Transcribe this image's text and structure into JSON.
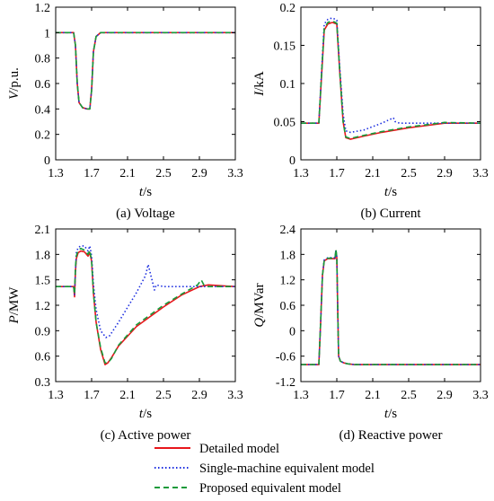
{
  "colors": {
    "detailed": "#e8161b",
    "single": "#1d2fe0",
    "proposed": "#179a3a",
    "axis": "#000000",
    "background": "#ffffff"
  },
  "legend": {
    "placement": "bottom-center",
    "items": [
      {
        "label": "Detailed model",
        "color": "#e8161b",
        "dash": "solid"
      },
      {
        "label": "Single-machine equivalent model",
        "color": "#1d2fe0",
        "dash": "dotted"
      },
      {
        "label": "Proposed equivalent model",
        "color": "#179a3a",
        "dash": "dashed"
      }
    ]
  },
  "chart_data": [
    {
      "type": "line",
      "caption": "(a) Voltage",
      "xlabel_var": "t",
      "xlabel_unit": "/s",
      "ylabel_var": "V",
      "ylabel_unit": "/p.u.",
      "xlim": [
        1.3,
        3.3
      ],
      "ylim": [
        0,
        1.2
      ],
      "xticks": [
        "1.3",
        "1.7",
        "2.1",
        "2.5",
        "2.9",
        "3.3"
      ],
      "yticks": [
        "0",
        "0.2",
        "0.4",
        "0.6",
        "0.8",
        "1",
        "1.2"
      ],
      "grid": false,
      "series": [
        {
          "name": "Detailed model",
          "x": [
            1.3,
            1.5,
            1.52,
            1.54,
            1.56,
            1.6,
            1.65,
            1.68,
            1.7,
            1.72,
            1.75,
            1.8,
            3.3
          ],
          "y": [
            1,
            1,
            0.9,
            0.6,
            0.45,
            0.41,
            0.4,
            0.4,
            0.55,
            0.85,
            0.97,
            1,
            1
          ]
        },
        {
          "name": "Single-machine equivalent model",
          "x": [
            1.3,
            1.5,
            1.52,
            1.54,
            1.56,
            1.6,
            1.65,
            1.68,
            1.7,
            1.72,
            1.75,
            1.8,
            3.3
          ],
          "y": [
            1,
            1,
            0.9,
            0.6,
            0.45,
            0.41,
            0.4,
            0.4,
            0.55,
            0.85,
            0.97,
            1,
            1
          ]
        },
        {
          "name": "Proposed equivalent model",
          "x": [
            1.3,
            1.5,
            1.52,
            1.54,
            1.56,
            1.6,
            1.65,
            1.68,
            1.7,
            1.72,
            1.75,
            1.8,
            3.3
          ],
          "y": [
            1,
            1,
            0.9,
            0.6,
            0.45,
            0.41,
            0.4,
            0.4,
            0.55,
            0.85,
            0.97,
            1,
            1
          ]
        }
      ]
    },
    {
      "type": "line",
      "caption": "(b) Current",
      "xlabel_var": "t",
      "xlabel_unit": "/s",
      "ylabel_var": "I",
      "ylabel_unit": "/kA",
      "xlim": [
        1.3,
        3.3
      ],
      "ylim": [
        0,
        0.2
      ],
      "xticks": [
        "1.3",
        "1.7",
        "2.1",
        "2.5",
        "2.9",
        "3.3"
      ],
      "yticks": [
        "0",
        "0.05",
        "0.1",
        "0.15",
        "0.2"
      ],
      "grid": false,
      "series": [
        {
          "name": "Detailed model",
          "x": [
            1.3,
            1.5,
            1.53,
            1.56,
            1.6,
            1.65,
            1.7,
            1.73,
            1.77,
            1.8,
            1.85,
            2.0,
            2.2,
            2.5,
            2.9,
            3.3
          ],
          "y": [
            0.048,
            0.048,
            0.11,
            0.17,
            0.178,
            0.18,
            0.178,
            0.12,
            0.05,
            0.029,
            0.027,
            0.031,
            0.036,
            0.042,
            0.048,
            0.048
          ]
        },
        {
          "name": "Single-machine equivalent model",
          "x": [
            1.3,
            1.5,
            1.53,
            1.56,
            1.6,
            1.65,
            1.7,
            1.73,
            1.77,
            1.8,
            1.85,
            2.0,
            2.2,
            2.33,
            2.35,
            2.4,
            2.5,
            2.9,
            3.3
          ],
          "y": [
            0.048,
            0.048,
            0.115,
            0.178,
            0.184,
            0.186,
            0.183,
            0.125,
            0.06,
            0.038,
            0.036,
            0.039,
            0.048,
            0.055,
            0.05,
            0.048,
            0.048,
            0.048,
            0.048
          ]
        },
        {
          "name": "Proposed equivalent model",
          "x": [
            1.3,
            1.5,
            1.53,
            1.56,
            1.6,
            1.65,
            1.7,
            1.73,
            1.77,
            1.8,
            1.85,
            2.0,
            2.2,
            2.5,
            2.9,
            3.3
          ],
          "y": [
            0.048,
            0.048,
            0.112,
            0.172,
            0.18,
            0.182,
            0.179,
            0.12,
            0.05,
            0.03,
            0.028,
            0.032,
            0.037,
            0.043,
            0.049,
            0.048
          ]
        }
      ]
    },
    {
      "type": "line",
      "caption": "(c) Active power",
      "xlabel_var": "t",
      "xlabel_unit": "/s",
      "ylabel_var": "P",
      "ylabel_unit": "/MW",
      "xlim": [
        1.3,
        3.3
      ],
      "ylim": [
        0.3,
        2.1
      ],
      "xticks": [
        "1.3",
        "1.7",
        "2.1",
        "2.5",
        "2.9",
        "3.3"
      ],
      "yticks": [
        "0.3",
        "0.6",
        "0.9",
        "1.2",
        "1.5",
        "1.8",
        "2.1"
      ],
      "grid": false,
      "series": [
        {
          "name": "Detailed model",
          "x": [
            1.3,
            1.5,
            1.51,
            1.52,
            1.53,
            1.55,
            1.58,
            1.62,
            1.66,
            1.68,
            1.7,
            1.72,
            1.75,
            1.8,
            1.85,
            1.88,
            1.92,
            2.0,
            2.2,
            2.5,
            2.7,
            2.9,
            3.0,
            3.3
          ],
          "y": [
            1.42,
            1.42,
            1.3,
            1.6,
            1.75,
            1.82,
            1.84,
            1.83,
            1.78,
            1.82,
            1.72,
            1.35,
            1.0,
            0.68,
            0.5,
            0.52,
            0.58,
            0.72,
            0.95,
            1.18,
            1.32,
            1.42,
            1.44,
            1.42
          ]
        },
        {
          "name": "Single-machine equivalent model",
          "x": [
            1.3,
            1.5,
            1.51,
            1.52,
            1.53,
            1.55,
            1.58,
            1.62,
            1.66,
            1.68,
            1.7,
            1.72,
            1.75,
            1.8,
            1.86,
            1.9,
            2.0,
            2.2,
            2.3,
            2.33,
            2.36,
            2.4,
            2.42,
            2.5,
            3.3
          ],
          "y": [
            1.42,
            1.42,
            1.32,
            1.6,
            1.82,
            1.88,
            1.9,
            1.9,
            1.84,
            1.9,
            1.78,
            1.45,
            1.15,
            0.9,
            0.82,
            0.84,
            1.0,
            1.35,
            1.55,
            1.68,
            1.55,
            1.38,
            1.44,
            1.42,
            1.42
          ]
        },
        {
          "name": "Proposed equivalent model",
          "x": [
            1.3,
            1.5,
            1.51,
            1.52,
            1.53,
            1.55,
            1.58,
            1.62,
            1.66,
            1.68,
            1.7,
            1.72,
            1.75,
            1.8,
            1.85,
            1.88,
            1.92,
            2.0,
            2.2,
            2.5,
            2.7,
            2.88,
            2.92,
            2.95,
            3.0,
            3.3
          ],
          "y": [
            1.42,
            1.42,
            1.33,
            1.65,
            1.78,
            1.85,
            1.87,
            1.85,
            1.8,
            1.85,
            1.72,
            1.35,
            1.0,
            0.7,
            0.52,
            0.52,
            0.57,
            0.73,
            0.97,
            1.2,
            1.33,
            1.44,
            1.5,
            1.44,
            1.42,
            1.42
          ]
        }
      ]
    },
    {
      "type": "line",
      "caption": "(d) Reactive power",
      "xlabel_var": "t",
      "xlabel_unit": "/s",
      "ylabel_var": "Q",
      "ylabel_unit": "/MVar",
      "xlim": [
        1.3,
        3.3
      ],
      "ylim": [
        -1.2,
        2.4
      ],
      "xticks": [
        "1.3",
        "1.7",
        "2.1",
        "2.5",
        "2.9",
        "3.3"
      ],
      "yticks": [
        "-1.2",
        "-0.6",
        "0",
        "0.6",
        "1.2",
        "1.8",
        "2.4"
      ],
      "grid": false,
      "series": [
        {
          "name": "Detailed model",
          "x": [
            1.3,
            1.5,
            1.52,
            1.54,
            1.56,
            1.6,
            1.68,
            1.69,
            1.7,
            1.71,
            1.72,
            1.74,
            1.78,
            1.82,
            1.9,
            3.3
          ],
          "y": [
            -0.8,
            -0.8,
            0.2,
            1.3,
            1.65,
            1.7,
            1.7,
            1.88,
            1.72,
            0.5,
            -0.6,
            -0.72,
            -0.76,
            -0.78,
            -0.8,
            -0.8
          ]
        },
        {
          "name": "Single-machine equivalent model",
          "x": [
            1.3,
            1.5,
            1.52,
            1.54,
            1.56,
            1.6,
            1.68,
            1.69,
            1.7,
            1.71,
            1.72,
            1.74,
            1.78,
            1.82,
            1.9,
            3.3
          ],
          "y": [
            -0.8,
            -0.8,
            0.2,
            1.32,
            1.67,
            1.72,
            1.72,
            1.9,
            1.74,
            0.5,
            -0.6,
            -0.72,
            -0.76,
            -0.78,
            -0.8,
            -0.8
          ]
        },
        {
          "name": "Proposed equivalent model",
          "x": [
            1.3,
            1.5,
            1.52,
            1.54,
            1.56,
            1.6,
            1.68,
            1.69,
            1.7,
            1.71,
            1.72,
            1.74,
            1.78,
            1.82,
            1.9,
            3.3
          ],
          "y": [
            -0.8,
            -0.8,
            0.2,
            1.3,
            1.66,
            1.71,
            1.71,
            1.92,
            1.73,
            0.5,
            -0.6,
            -0.72,
            -0.76,
            -0.78,
            -0.8,
            -0.8
          ]
        }
      ]
    }
  ]
}
